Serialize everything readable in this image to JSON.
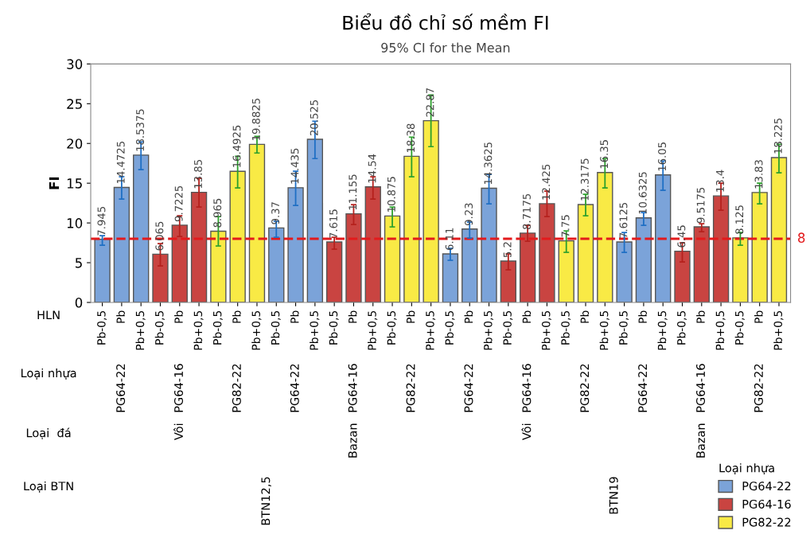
{
  "chart_data": {
    "type": "bar",
    "title": "Biểu đồ chỉ số mềm FI",
    "subtitle": "95% CI for the Mean",
    "xlabel": "HLN",
    "ylabel": "FI",
    "legend_title": "Loại nhựa",
    "categories": [
      "Pb-0,5",
      "Pb",
      "Pb+0,5",
      "Pb-0,5",
      "Pb",
      "Pb+0,5",
      "Pb-0,5",
      "Pb",
      "Pb+0,5",
      "Pb-0,5",
      "Pb",
      "Pb+0,5",
      "Pb-0,5",
      "Pb",
      "Pb+0,5",
      "Pb-0,5",
      "Pb",
      "Pb+0,5",
      "Pb-0,5",
      "Pb",
      "Pb+0,5",
      "Pb-0,5",
      "Pb",
      "Pb+0,5",
      "Pb-0,5",
      "Pb",
      "Pb+0,5",
      "Pb-0,5",
      "Pb",
      "Pb+0,5",
      "Pb-0,5",
      "Pb",
      "Pb+0,5",
      "Pb-0,5",
      "Pb",
      "Pb+0,5"
    ],
    "series": [
      {
        "name": "PG64-22",
        "color": "#7ba3d9",
        "values": [
          7.945,
          14.4725,
          18.5375,
          null,
          null,
          null,
          null,
          null,
          null,
          9.37,
          14.435,
          20.525,
          null,
          null,
          null,
          null,
          null,
          null,
          6.11,
          9.23,
          14.3625,
          null,
          null,
          null,
          null,
          null,
          null,
          7.6125,
          10.6325,
          16.05,
          null,
          null,
          null,
          null,
          null,
          null
        ],
        "errors": [
          [
            7.2,
            8.4
          ],
          [
            13.0,
            15.8
          ],
          [
            16.7,
            20.2
          ],
          null,
          null,
          null,
          null,
          null,
          null,
          [
            8.2,
            10.2
          ],
          [
            12.2,
            16.5
          ],
          [
            18.1,
            22.8
          ],
          null,
          null,
          null,
          null,
          null,
          null,
          [
            5.3,
            6.8
          ],
          [
            8.1,
            10.1
          ],
          [
            12.4,
            16.1
          ],
          null,
          null,
          null,
          null,
          null,
          null,
          [
            6.3,
            8.8
          ],
          [
            9.7,
            11.3
          ],
          [
            14.1,
            17.8
          ],
          null,
          null,
          null,
          null,
          null,
          null
        ]
      },
      {
        "name": "PG64-16",
        "color": "#c94441",
        "values": [
          null,
          null,
          null,
          6.065,
          9.7225,
          13.85,
          null,
          null,
          null,
          null,
          null,
          null,
          7.615,
          11.155,
          14.54,
          null,
          null,
          null,
          null,
          null,
          null,
          5.2,
          8.7175,
          12.425,
          null,
          null,
          null,
          null,
          null,
          null,
          6.45,
          9.5175,
          13.4,
          null,
          null,
          null
        ],
        "errors": [
          null,
          null,
          null,
          [
            4.6,
            7.4
          ],
          [
            8.3,
            10.9
          ],
          [
            12.0,
            15.6
          ],
          null,
          null,
          null,
          null,
          null,
          null,
          [
            6.7,
            8.2
          ],
          [
            9.8,
            12.3
          ],
          [
            13.0,
            15.8
          ],
          null,
          null,
          null,
          null,
          null,
          null,
          [
            4.1,
            6.1
          ],
          [
            7.7,
            9.7
          ],
          [
            10.8,
            14.0
          ],
          null,
          null,
          null,
          null,
          null,
          null,
          [
            5.1,
            7.5
          ],
          [
            8.9,
            9.9
          ],
          [
            11.6,
            15.0
          ],
          null,
          null,
          null
        ]
      },
      {
        "name": "PG82-22",
        "color": "#f9ea45",
        "values": [
          null,
          null,
          null,
          null,
          null,
          null,
          8.965,
          16.4925,
          19.8825,
          null,
          null,
          null,
          null,
          null,
          null,
          10.875,
          18.38,
          22.87,
          null,
          null,
          null,
          null,
          null,
          null,
          7.75,
          12.3175,
          16.35,
          null,
          null,
          null,
          null,
          null,
          null,
          8.125,
          13.83,
          18.225
        ],
        "errors": [
          null,
          null,
          null,
          null,
          null,
          null,
          [
            7.1,
            10.8
          ],
          [
            14.4,
            18.4
          ],
          [
            18.8,
            20.9
          ],
          null,
          null,
          null,
          null,
          null,
          null,
          [
            9.5,
            12.0
          ],
          [
            15.8,
            20.8
          ],
          [
            19.6,
            26.1
          ],
          null,
          null,
          null,
          null,
          null,
          null,
          [
            6.3,
            9.0
          ],
          [
            10.9,
            13.6
          ],
          [
            14.4,
            18.1
          ],
          null,
          null,
          null,
          null,
          null,
          null,
          [
            7.2,
            8.8
          ],
          [
            12.4,
            15.0
          ],
          [
            16.3,
            19.9
          ]
        ]
      }
    ],
    "ylim": [
      0,
      30
    ],
    "yticks": [
      0,
      5,
      10,
      15,
      20,
      25,
      30
    ],
    "grid": false,
    "legend": "bottom right",
    "data_labels": true,
    "ref_lines": [
      {
        "axis": "y",
        "value": 8,
        "label": "8",
        "color": "#e31a1c",
        "line_style": "dashed"
      }
    ],
    "annotations": [
      "Loại nhựa",
      "PG64-22",
      "PG64-16",
      "PG82-22",
      "PG64-22",
      "PG64-16",
      "PG82-22",
      "PG64-22",
      "PG64-16",
      "PG82-22",
      "PG64-22",
      "PG64-16",
      "PG82-22",
      "Loại  đá",
      "Vôi",
      "Bazan",
      "Vôi",
      "Bazan",
      "Loại BTN",
      "BTN12,5",
      "BTN19"
    ]
  }
}
